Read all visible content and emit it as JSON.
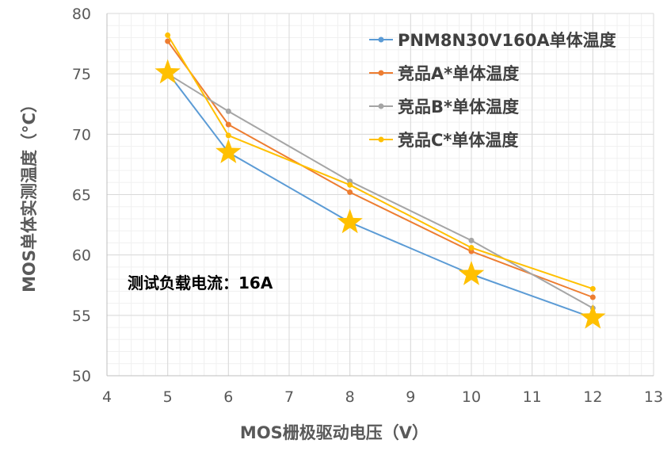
{
  "chart_data": {
    "type": "line",
    "xlabel": "MOS栅极驱动电压（V）",
    "ylabel": "MOS单体实测温度（°C）",
    "xlim": [
      4,
      13
    ],
    "ylim": [
      50,
      80
    ],
    "x_ticks": [
      "4",
      "5",
      "6",
      "7",
      "8",
      "9",
      "10",
      "11",
      "12",
      "13"
    ],
    "y_ticks": [
      "50",
      "55",
      "60",
      "65",
      "70",
      "75",
      "80"
    ],
    "grid": "major and minor",
    "legend_position": "top-right",
    "annotation": "测试负载电流：16A",
    "series": [
      {
        "name": "PNM8N30V160A单体温度",
        "color": "#5b9bd5",
        "x": [
          5,
          6,
          8,
          10,
          12
        ],
        "values": [
          75.1,
          68.5,
          62.7,
          58.4,
          54.8
        ],
        "marker": "star",
        "marker_color": "#ffc000"
      },
      {
        "name": "竞品A*单体温度",
        "color": "#ed7d31",
        "x": [
          5,
          6,
          8,
          10,
          12
        ],
        "values": [
          77.7,
          70.8,
          65.2,
          60.3,
          56.5
        ]
      },
      {
        "name": "竞品B*单体温度",
        "color": "#a5a5a5",
        "x": [
          5,
          6,
          8,
          10,
          12
        ],
        "values": [
          75.0,
          71.9,
          66.1,
          61.2,
          55.6
        ]
      },
      {
        "name": "竞品C*单体温度",
        "color": "#ffc000",
        "x": [
          5,
          6,
          8,
          10,
          12
        ],
        "values": [
          78.2,
          69.9,
          65.8,
          60.6,
          57.2
        ]
      }
    ]
  }
}
